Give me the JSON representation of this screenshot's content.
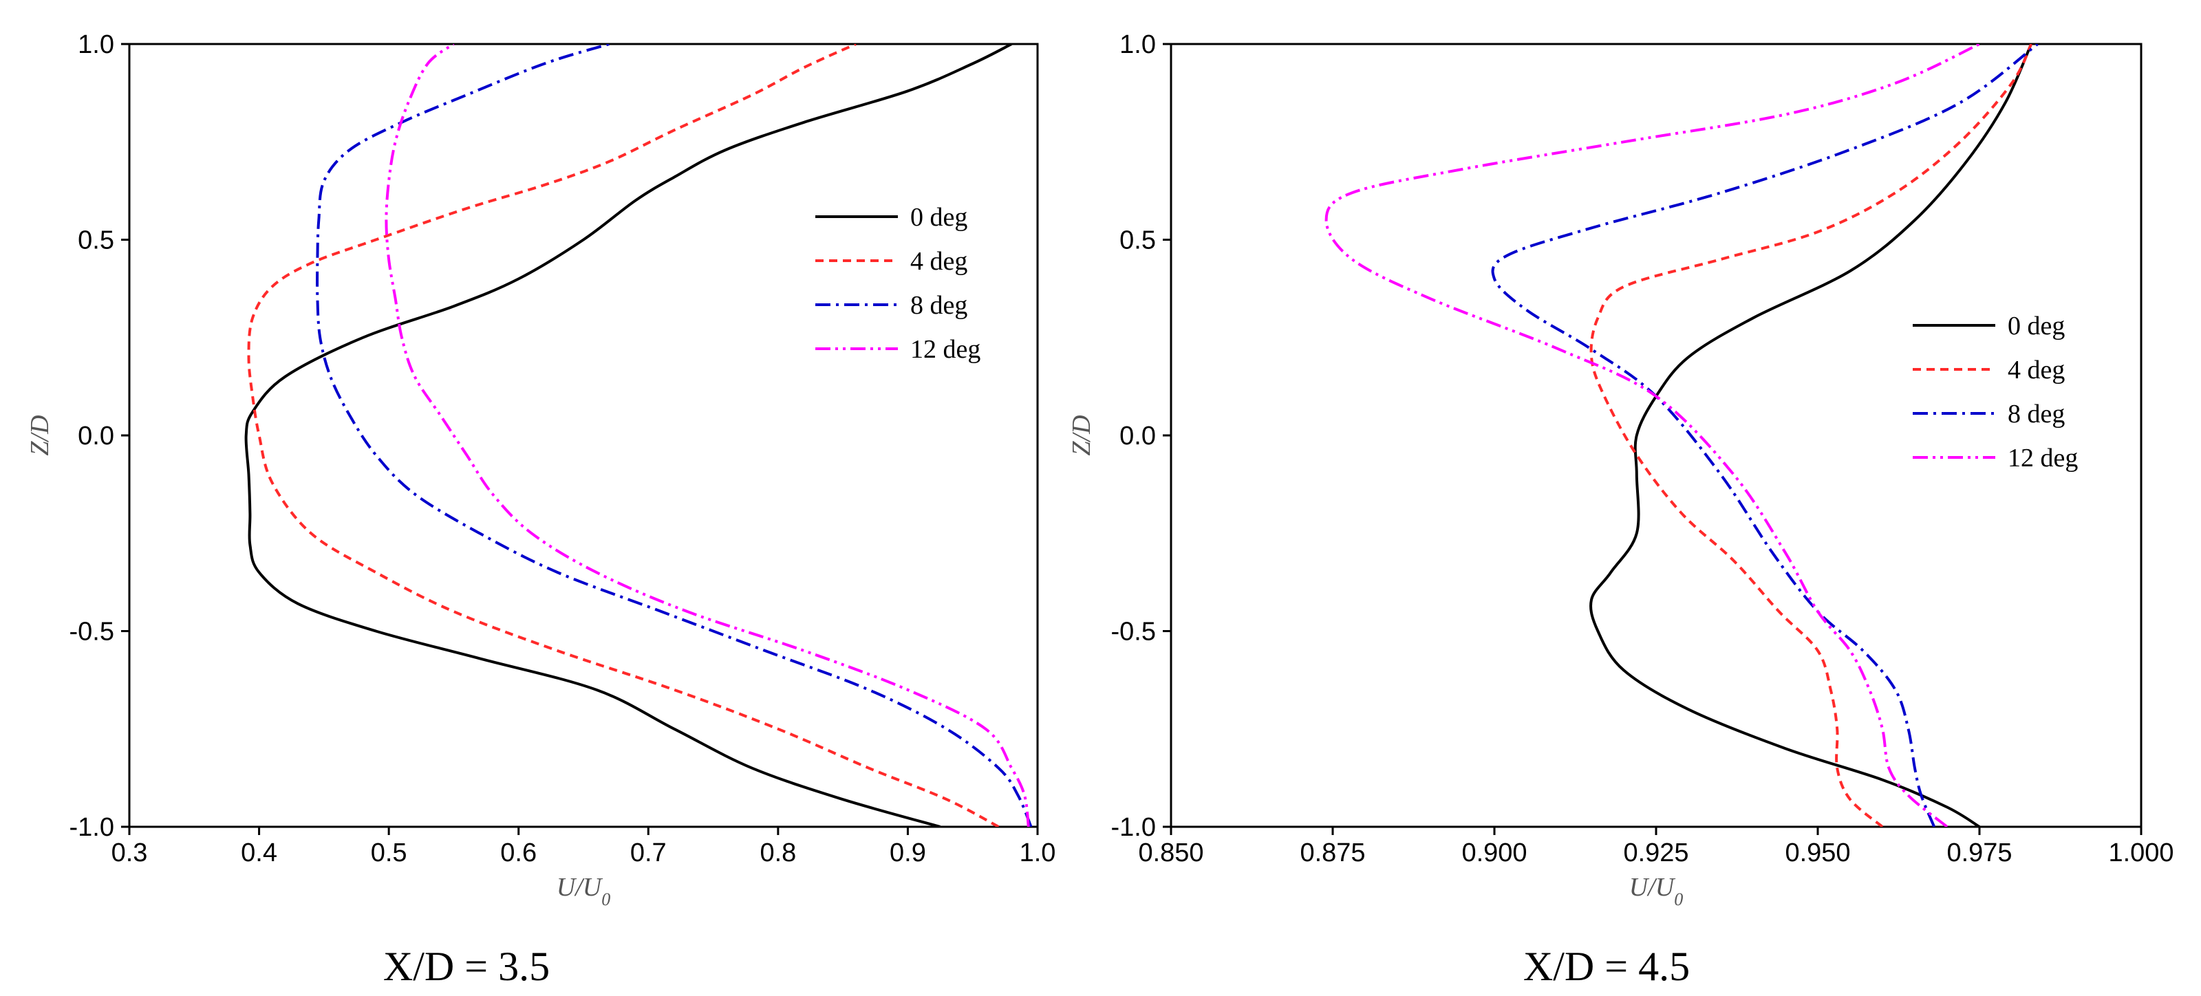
{
  "chart_data": [
    {
      "type": "line",
      "caption": "X/D = 3.5",
      "xlabel": "U/U",
      "xlabel_sub": "0",
      "ylabel": "Z/D",
      "xlim": [
        0.3,
        1.0
      ],
      "ylim": [
        -1.0,
        1.0
      ],
      "xticks": [
        "0.3",
        "0.4",
        "0.5",
        "0.6",
        "0.7",
        "0.8",
        "0.9",
        "1.0"
      ],
      "yticks": [
        "-1.0",
        "-0.5",
        "0.0",
        "0.5",
        "1.0"
      ],
      "legend_position": "right",
      "series": [
        {
          "name": "0 deg",
          "color": "#000000",
          "dash": "solid",
          "points": [
            [
              0.925,
              -1.0
            ],
            [
              0.85,
              -0.93
            ],
            [
              0.78,
              -0.85
            ],
            [
              0.72,
              -0.75
            ],
            [
              0.66,
              -0.65
            ],
            [
              0.57,
              -0.57
            ],
            [
              0.49,
              -0.5
            ],
            [
              0.43,
              -0.43
            ],
            [
              0.4,
              -0.35
            ],
            [
              0.393,
              -0.28
            ],
            [
              0.393,
              -0.2
            ],
            [
              0.392,
              -0.1
            ],
            [
              0.39,
              0.0
            ],
            [
              0.395,
              0.06
            ],
            [
              0.42,
              0.15
            ],
            [
              0.48,
              0.25
            ],
            [
              0.55,
              0.33
            ],
            [
              0.6,
              0.4
            ],
            [
              0.65,
              0.5
            ],
            [
              0.69,
              0.6
            ],
            [
              0.72,
              0.66
            ],
            [
              0.76,
              0.73
            ],
            [
              0.82,
              0.8
            ],
            [
              0.9,
              0.88
            ],
            [
              0.95,
              0.95
            ],
            [
              0.98,
              1.0
            ]
          ]
        },
        {
          "name": "4 deg",
          "color": "#ff2a2a",
          "dash": "dash",
          "points": [
            [
              0.97,
              -1.0
            ],
            [
              0.93,
              -0.93
            ],
            [
              0.87,
              -0.85
            ],
            [
              0.8,
              -0.75
            ],
            [
              0.72,
              -0.65
            ],
            [
              0.63,
              -0.55
            ],
            [
              0.55,
              -0.45
            ],
            [
              0.49,
              -0.35
            ],
            [
              0.44,
              -0.25
            ],
            [
              0.41,
              -0.12
            ],
            [
              0.4,
              0.0
            ],
            [
              0.395,
              0.1
            ],
            [
              0.392,
              0.2
            ],
            [
              0.395,
              0.3
            ],
            [
              0.41,
              0.38
            ],
            [
              0.44,
              0.44
            ],
            [
              0.49,
              0.5
            ],
            [
              0.56,
              0.58
            ],
            [
              0.62,
              0.64
            ],
            [
              0.67,
              0.7
            ],
            [
              0.72,
              0.78
            ],
            [
              0.78,
              0.87
            ],
            [
              0.82,
              0.94
            ],
            [
              0.86,
              1.0
            ]
          ]
        },
        {
          "name": "8 deg",
          "color": "#0000cc",
          "dash": "dashdot",
          "points": [
            [
              0.995,
              -1.0
            ],
            [
              0.985,
              -0.92
            ],
            [
              0.97,
              -0.85
            ],
            [
              0.93,
              -0.75
            ],
            [
              0.87,
              -0.65
            ],
            [
              0.79,
              -0.55
            ],
            [
              0.71,
              -0.45
            ],
            [
              0.63,
              -0.35
            ],
            [
              0.57,
              -0.25
            ],
            [
              0.52,
              -0.15
            ],
            [
              0.49,
              -0.05
            ],
            [
              0.47,
              0.05
            ],
            [
              0.455,
              0.15
            ],
            [
              0.447,
              0.25
            ],
            [
              0.445,
              0.35
            ],
            [
              0.445,
              0.45
            ],
            [
              0.446,
              0.55
            ],
            [
              0.45,
              0.65
            ],
            [
              0.47,
              0.73
            ],
            [
              0.51,
              0.8
            ],
            [
              0.56,
              0.87
            ],
            [
              0.62,
              0.95
            ],
            [
              0.67,
              1.0
            ]
          ]
        },
        {
          "name": "12 deg",
          "color": "#ff00ff",
          "dash": "dashdotdot",
          "points": [
            [
              0.993,
              -1.0
            ],
            [
              0.99,
              -0.92
            ],
            [
              0.98,
              -0.85
            ],
            [
              0.96,
              -0.75
            ],
            [
              0.9,
              -0.65
            ],
            [
              0.82,
              -0.55
            ],
            [
              0.73,
              -0.45
            ],
            [
              0.66,
              -0.35
            ],
            [
              0.61,
              -0.25
            ],
            [
              0.58,
              -0.15
            ],
            [
              0.56,
              -0.05
            ],
            [
              0.54,
              0.05
            ],
            [
              0.52,
              0.15
            ],
            [
              0.51,
              0.25
            ],
            [
              0.505,
              0.35
            ],
            [
              0.5,
              0.45
            ],
            [
              0.498,
              0.55
            ],
            [
              0.5,
              0.65
            ],
            [
              0.505,
              0.75
            ],
            [
              0.515,
              0.85
            ],
            [
              0.53,
              0.95
            ],
            [
              0.55,
              1.0
            ]
          ]
        }
      ]
    },
    {
      "type": "line",
      "caption": "X/D = 4.5",
      "xlabel": "U/U",
      "xlabel_sub": "0",
      "ylabel": "Z/D",
      "xlim": [
        0.85,
        1.0
      ],
      "ylim": [
        -1.0,
        1.0
      ],
      "xticks": [
        "0.850",
        "0.875",
        "0.900",
        "0.925",
        "0.950",
        "0.975",
        "1.000"
      ],
      "yticks": [
        "-1.0",
        "-0.5",
        "0.0",
        "0.5",
        "1.0"
      ],
      "legend_position": "right",
      "series": [
        {
          "name": "0 deg",
          "color": "#000000",
          "dash": "solid",
          "points": [
            [
              0.975,
              -1.0
            ],
            [
              0.97,
              -0.95
            ],
            [
              0.96,
              -0.88
            ],
            [
              0.945,
              -0.8
            ],
            [
              0.93,
              -0.7
            ],
            [
              0.92,
              -0.6
            ],
            [
              0.916,
              -0.5
            ],
            [
              0.915,
              -0.42
            ],
            [
              0.918,
              -0.35
            ],
            [
              0.922,
              -0.25
            ],
            [
              0.922,
              -0.1
            ],
            [
              0.922,
              0.0
            ],
            [
              0.925,
              0.1
            ],
            [
              0.93,
              0.2
            ],
            [
              0.94,
              0.3
            ],
            [
              0.955,
              0.42
            ],
            [
              0.965,
              0.55
            ],
            [
              0.973,
              0.7
            ],
            [
              0.979,
              0.85
            ],
            [
              0.983,
              1.0
            ]
          ]
        },
        {
          "name": "4 deg",
          "color": "#ff2a2a",
          "dash": "dash",
          "points": [
            [
              0.96,
              -1.0
            ],
            [
              0.955,
              -0.93
            ],
            [
              0.953,
              -0.85
            ],
            [
              0.953,
              -0.75
            ],
            [
              0.952,
              -0.65
            ],
            [
              0.95,
              -0.55
            ],
            [
              0.944,
              -0.45
            ],
            [
              0.937,
              -0.32
            ],
            [
              0.929,
              -0.2
            ],
            [
              0.922,
              -0.05
            ],
            [
              0.917,
              0.1
            ],
            [
              0.915,
              0.2
            ],
            [
              0.916,
              0.3
            ],
            [
              0.92,
              0.38
            ],
            [
              0.935,
              0.45
            ],
            [
              0.95,
              0.52
            ],
            [
              0.962,
              0.62
            ],
            [
              0.972,
              0.75
            ],
            [
              0.98,
              0.9
            ],
            [
              0.983,
              1.0
            ]
          ]
        },
        {
          "name": "8 deg",
          "color": "#0000cc",
          "dash": "dashdot",
          "points": [
            [
              0.968,
              -1.0
            ],
            [
              0.966,
              -0.92
            ],
            [
              0.965,
              -0.85
            ],
            [
              0.964,
              -0.75
            ],
            [
              0.962,
              -0.65
            ],
            [
              0.957,
              -0.55
            ],
            [
              0.95,
              -0.45
            ],
            [
              0.943,
              -0.3
            ],
            [
              0.935,
              -0.1
            ],
            [
              0.925,
              0.1
            ],
            [
              0.915,
              0.22
            ],
            [
              0.905,
              0.32
            ],
            [
              0.9,
              0.4
            ],
            [
              0.902,
              0.46
            ],
            [
              0.915,
              0.53
            ],
            [
              0.935,
              0.62
            ],
            [
              0.955,
              0.73
            ],
            [
              0.972,
              0.85
            ],
            [
              0.984,
              1.0
            ]
          ]
        },
        {
          "name": "12 deg",
          "color": "#ff00ff",
          "dash": "dashdotdot",
          "points": [
            [
              0.97,
              -1.0
            ],
            [
              0.964,
              -0.92
            ],
            [
              0.961,
              -0.85
            ],
            [
              0.96,
              -0.75
            ],
            [
              0.958,
              -0.65
            ],
            [
              0.955,
              -0.55
            ],
            [
              0.95,
              -0.45
            ],
            [
              0.945,
              -0.3
            ],
            [
              0.937,
              -0.1
            ],
            [
              0.925,
              0.1
            ],
            [
              0.91,
              0.22
            ],
            [
              0.89,
              0.35
            ],
            [
              0.878,
              0.45
            ],
            [
              0.874,
              0.55
            ],
            [
              0.878,
              0.62
            ],
            [
              0.895,
              0.68
            ],
            [
              0.92,
              0.75
            ],
            [
              0.945,
              0.82
            ],
            [
              0.962,
              0.9
            ],
            [
              0.975,
              1.0
            ]
          ]
        }
      ]
    }
  ]
}
